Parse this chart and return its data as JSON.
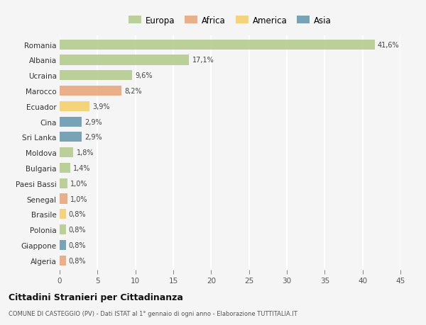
{
  "countries": [
    "Romania",
    "Albania",
    "Ucraina",
    "Marocco",
    "Ecuador",
    "Cina",
    "Sri Lanka",
    "Moldova",
    "Bulgaria",
    "Paesi Bassi",
    "Senegal",
    "Brasile",
    "Polonia",
    "Giappone",
    "Algeria"
  ],
  "values": [
    41.6,
    17.1,
    9.6,
    8.2,
    3.9,
    2.9,
    2.9,
    1.8,
    1.4,
    1.0,
    1.0,
    0.8,
    0.8,
    0.8,
    0.8
  ],
  "labels": [
    "41,6%",
    "17,1%",
    "9,6%",
    "8,2%",
    "3,9%",
    "2,9%",
    "2,9%",
    "1,8%",
    "1,4%",
    "1,0%",
    "1,0%",
    "0,8%",
    "0,8%",
    "0,8%",
    "0,8%"
  ],
  "colors": [
    "#b5cc8e",
    "#b5cc8e",
    "#b5cc8e",
    "#e8a87c",
    "#f5d06e",
    "#6a9ab0",
    "#6a9ab0",
    "#b5cc8e",
    "#b5cc8e",
    "#b5cc8e",
    "#e8a87c",
    "#f5d06e",
    "#b5cc8e",
    "#6a9ab0",
    "#e8a87c"
  ],
  "legend_labels": [
    "Europa",
    "Africa",
    "America",
    "Asia"
  ],
  "legend_colors": [
    "#b5cc8e",
    "#e8a87c",
    "#f5d06e",
    "#6a9ab0"
  ],
  "title": "Cittadini Stranieri per Cittadinanza",
  "subtitle": "COMUNE DI CASTEGGIO (PV) - Dati ISTAT al 1° gennaio di ogni anno - Elaborazione TUTTITALIA.IT",
  "xlim": [
    0,
    45
  ],
  "xticks": [
    0,
    5,
    10,
    15,
    20,
    25,
    30,
    35,
    40,
    45
  ],
  "background_color": "#f5f5f5",
  "grid_color": "#ffffff",
  "bar_height": 0.65
}
